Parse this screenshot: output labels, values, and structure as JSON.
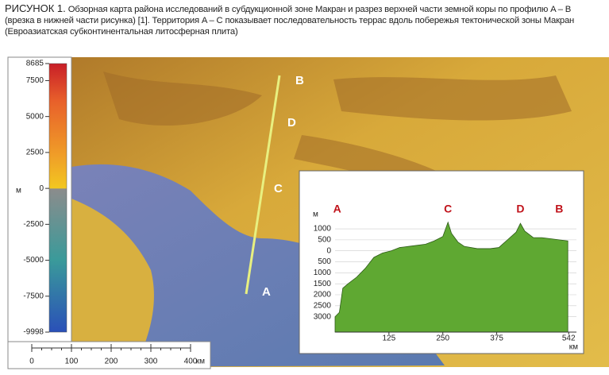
{
  "caption": {
    "label": "РИСУНОК 1.",
    "text": "Обзорная карта района исследований в субдукционной зоне Макран и разрез верхней части земной коры по профилю A – B (врезка в нижней части рисунка) [1]. Территория A – C показывает последовательность террас вдоль побережья тектонической зоны Макран (Евроазиатская субконтинентальная литосферная плита)"
  },
  "color_scale": {
    "unit": "м",
    "ticks": [
      8685,
      7500,
      5000,
      2500,
      0,
      -2500,
      -5000,
      -7500,
      -9998
    ]
  },
  "map": {
    "labels": [
      "B",
      "D",
      "C",
      "A"
    ]
  },
  "scale_bar": {
    "ticks": [
      0,
      100,
      200,
      300,
      400
    ],
    "unit": "км"
  },
  "chart_data": {
    "type": "area",
    "y_unit": "м",
    "x_unit": "км",
    "color": "#5fa832",
    "x": [
      0,
      10,
      18,
      30,
      50,
      70,
      90,
      110,
      130,
      150,
      170,
      190,
      210,
      230,
      250,
      262,
      270,
      285,
      300,
      330,
      360,
      380,
      400,
      420,
      430,
      440,
      460,
      480,
      500,
      520,
      540
    ],
    "values": [
      -3000,
      -2800,
      -1700,
      -1500,
      -1200,
      -800,
      -300,
      -100,
      0,
      150,
      200,
      250,
      300,
      450,
      650,
      1300,
      800,
      400,
      200,
      100,
      100,
      150,
      500,
      850,
      1250,
      900,
      600,
      600,
      550,
      500,
      450
    ],
    "xlim": [
      0,
      560
    ],
    "ylim": [
      -3700,
      1400
    ],
    "xticks": [
      125,
      250,
      375,
      542
    ],
    "yticks": [
      1000,
      500,
      0,
      {
        "value": -500,
        "label": "500"
      },
      {
        "value": -1000,
        "label": "1000"
      },
      {
        "value": -1500,
        "label": "1500"
      },
      {
        "value": -2000,
        "label": "2000"
      },
      {
        "value": -2500,
        "label": "2500"
      },
      {
        "value": -3000,
        "label": "3000"
      }
    ],
    "annotations": [
      {
        "text": "A",
        "x": 5
      },
      {
        "text": "C",
        "x": 262
      },
      {
        "text": "D",
        "x": 430
      },
      {
        "text": "B",
        "x": 520
      }
    ]
  }
}
